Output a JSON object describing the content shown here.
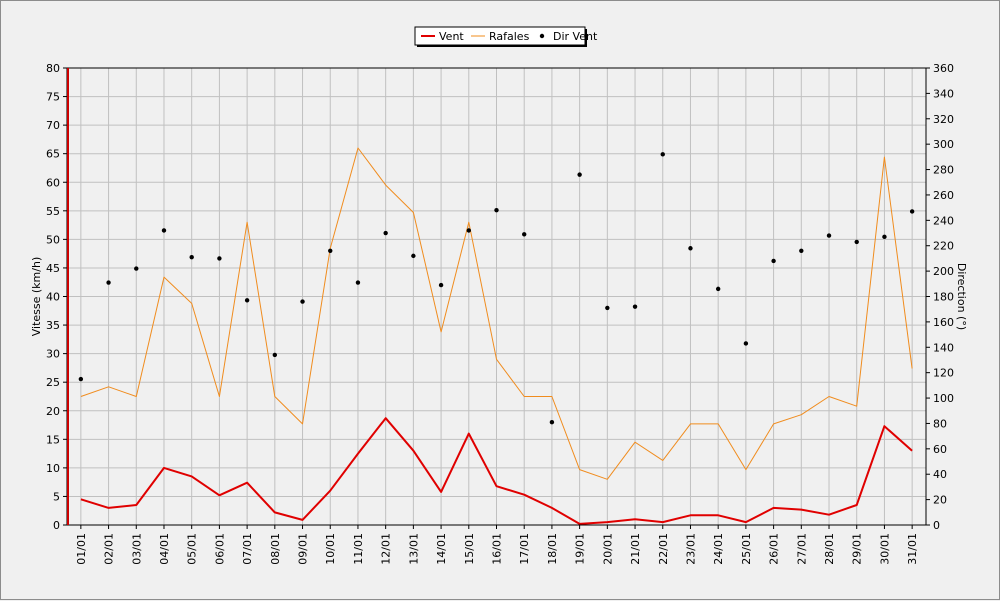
{
  "chart_data": {
    "type": "line",
    "categories": [
      "01/01",
      "02/01",
      "03/01",
      "04/01",
      "05/01",
      "06/01",
      "07/01",
      "08/01",
      "09/01",
      "10/01",
      "11/01",
      "12/01",
      "13/01",
      "14/01",
      "15/01",
      "16/01",
      "17/01",
      "18/01",
      "19/01",
      "20/01",
      "21/01",
      "22/01",
      "23/01",
      "24/01",
      "25/01",
      "26/01",
      "27/01",
      "28/01",
      "29/01",
      "30/01",
      "31/01"
    ],
    "series": [
      {
        "name": "Vent",
        "color": "#e00000",
        "axis": "left",
        "style": "line",
        "values": [
          4.5,
          3.0,
          3.5,
          10.0,
          8.5,
          5.2,
          7.4,
          2.2,
          0.9,
          6.0,
          12.5,
          18.7,
          13.0,
          5.8,
          16.0,
          6.8,
          5.3,
          3.0,
          0.2,
          0.5,
          1.0,
          0.5,
          1.7,
          1.7,
          0.5,
          3.0,
          2.7,
          1.8,
          3.5,
          17.3,
          13.0
        ]
      },
      {
        "name": "Rafales",
        "color": "#f08c1e",
        "axis": "left",
        "style": "line",
        "values": [
          22.5,
          24.2,
          22.5,
          43.4,
          38.8,
          22.5,
          53.0,
          22.5,
          17.7,
          48.4,
          66.0,
          59.5,
          54.7,
          33.8,
          53.0,
          29.0,
          22.5,
          22.5,
          9.7,
          8.0,
          14.5,
          11.3,
          17.7,
          17.7,
          9.7,
          17.7,
          19.3,
          22.5,
          20.8,
          64.4,
          27.4
        ]
      },
      {
        "name": "Dir Vent",
        "color": "#000000",
        "axis": "right",
        "style": "points",
        "values": [
          115,
          191,
          202,
          232,
          211,
          210,
          177,
          134,
          176,
          216,
          191,
          230,
          212,
          189,
          232,
          248,
          229,
          81,
          276,
          171,
          172,
          292,
          218,
          186,
          143,
          208,
          216,
          228,
          223,
          227,
          247
        ]
      }
    ],
    "ylabel": "Vitesse (km/h)",
    "y2label": "Direction (°)",
    "ylim": [
      0,
      80
    ],
    "y2lim": [
      0,
      360
    ],
    "yticks": [
      0,
      5,
      10,
      15,
      20,
      25,
      30,
      35,
      40,
      45,
      50,
      55,
      60,
      65,
      70,
      75,
      80
    ],
    "y2ticks": [
      0,
      20,
      40,
      60,
      80,
      100,
      120,
      140,
      160,
      180,
      200,
      220,
      240,
      260,
      280,
      300,
      320,
      340,
      360
    ],
    "grid": true,
    "legend_position": "top-center",
    "background": "#f0f0f0",
    "grid_color": "#c0c0c0"
  }
}
